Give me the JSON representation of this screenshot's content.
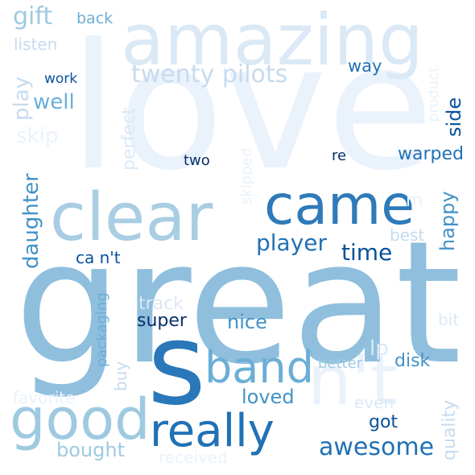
{
  "colors": {
    "background": "#ffffff",
    "palette": [
      "#eaf2fb",
      "#dbe9f6",
      "#c6dbef",
      "#9ecae1",
      "#6baed6",
      "#4292c6",
      "#2171b5",
      "#08519c",
      "#08306b"
    ]
  },
  "words": {
    "love": "love",
    "great": "great",
    "amazing": "amazing",
    "s": "s",
    "came": "came",
    "clear": "clear",
    "nt_big": "n't",
    "good": "good",
    "really": "really",
    "band": "band",
    "twenty_pilots": "twenty pilots",
    "gift": "gift",
    "back": "back",
    "listen": "listen",
    "play": "play",
    "work": "work",
    "well": "well",
    "skip": "skip",
    "perfect": "perfect",
    "way": "way",
    "product": "product",
    "side": "side",
    "two": "two",
    "re": "re",
    "warped": "warped",
    "skipped": "skipped",
    "m": "m",
    "daughter": "daughter",
    "player": "player",
    "happy": "happy",
    "time": "time",
    "best": "best",
    "cant": "ca n't",
    "packaging": "packaging",
    "track": "track",
    "super": "super",
    "nice": "nice",
    "bit": "bit",
    "lp": "lp",
    "buy": "buy",
    "disk": "disk",
    "better": "better",
    "favorite": "favorite",
    "loved": "loved",
    "even": "even",
    "quality": "quality",
    "got": "got",
    "bought": "bought",
    "awesome": "awesome",
    "received": "received"
  }
}
